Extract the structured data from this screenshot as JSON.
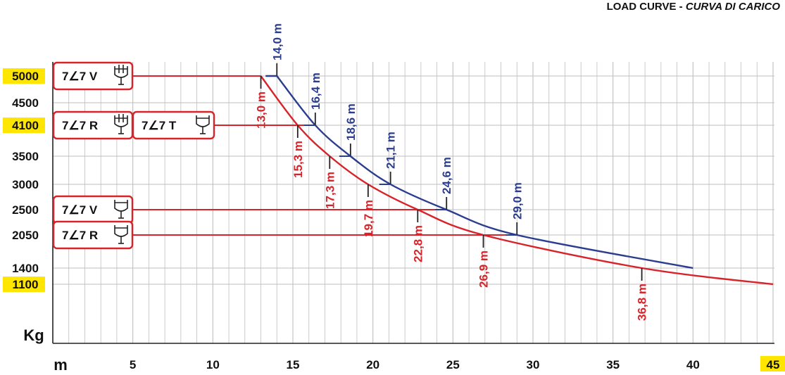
{
  "title_main": "LOAD CURVE - ",
  "title_sub": "CURVA DI CARICO",
  "chart_data": {
    "type": "line",
    "xlabel": "m",
    "ylabel": "Kg",
    "xlim": [
      0,
      45
    ],
    "x_ticks": [
      "5",
      "10",
      "15",
      "20",
      "25",
      "30",
      "35",
      "40",
      "45"
    ],
    "y_ticks": [
      "5000",
      "4500",
      "4100",
      "3500",
      "3000",
      "2500",
      "2050",
      "1400",
      "1100"
    ],
    "highlighted_ticks": [
      "5000",
      "4100",
      "1100",
      "45"
    ],
    "grid": true,
    "series": [
      {
        "color": "#2a3d8f",
        "points": [
          [
            14.0,
            5000
          ],
          [
            16.4,
            4100
          ],
          [
            18.6,
            3500
          ],
          [
            21.1,
            3000
          ],
          [
            24.6,
            2500
          ],
          [
            29.0,
            2050
          ],
          [
            40.0,
            1400
          ]
        ]
      },
      {
        "color": "#d8232a",
        "points": [
          [
            13.0,
            5000
          ],
          [
            15.3,
            4100
          ],
          [
            17.3,
            3500
          ],
          [
            19.7,
            3000
          ],
          [
            22.8,
            2500
          ],
          [
            26.9,
            2050
          ],
          [
            36.8,
            1400
          ],
          [
            45.0,
            1100
          ]
        ]
      }
    ],
    "annotations_blue": [
      {
        "x": 14.0,
        "y": 5000,
        "text": "14,0 m"
      },
      {
        "x": 16.4,
        "y": 4100,
        "text": "16,4 m"
      },
      {
        "x": 18.6,
        "y": 3500,
        "text": "18,6 m"
      },
      {
        "x": 21.1,
        "y": 3000,
        "text": "21,1 m"
      },
      {
        "x": 24.6,
        "y": 2500,
        "text": "24,6 m"
      },
      {
        "x": 29.0,
        "y": 2050,
        "text": "29,0 m"
      }
    ],
    "annotations_red": [
      {
        "x": 13.0,
        "y": 5000,
        "text": "13,0 m"
      },
      {
        "x": 15.3,
        "y": 4100,
        "text": "15,3 m"
      },
      {
        "x": 17.3,
        "y": 3500,
        "text": "17,3 m"
      },
      {
        "x": 19.7,
        "y": 3000,
        "text": "19,7 m"
      },
      {
        "x": 22.8,
        "y": 2500,
        "text": "22,8 m"
      },
      {
        "x": 26.9,
        "y": 2050,
        "text": "26,9 m"
      },
      {
        "x": 36.8,
        "y": 1400,
        "text": "36,8 m"
      }
    ],
    "config_boxes": [
      {
        "text": "7∠7 V",
        "y": 5000,
        "icon": "double-hook-icon"
      },
      {
        "text": "7∠7 R",
        "y": 4100,
        "icon": "double-hook-icon"
      },
      {
        "text": "7∠7 T",
        "y": 4100,
        "icon": "single-hook-icon"
      },
      {
        "text": "7∠7 V",
        "y": 2500,
        "icon": "single-hook-icon"
      },
      {
        "text": "7∠7 R",
        "y": 2050,
        "icon": "single-hook-icon"
      }
    ]
  },
  "colors": {
    "blue": "#2a3d8f",
    "red": "#d8232a",
    "highlight": "#ffe600",
    "grid": "#bfbfbf"
  }
}
